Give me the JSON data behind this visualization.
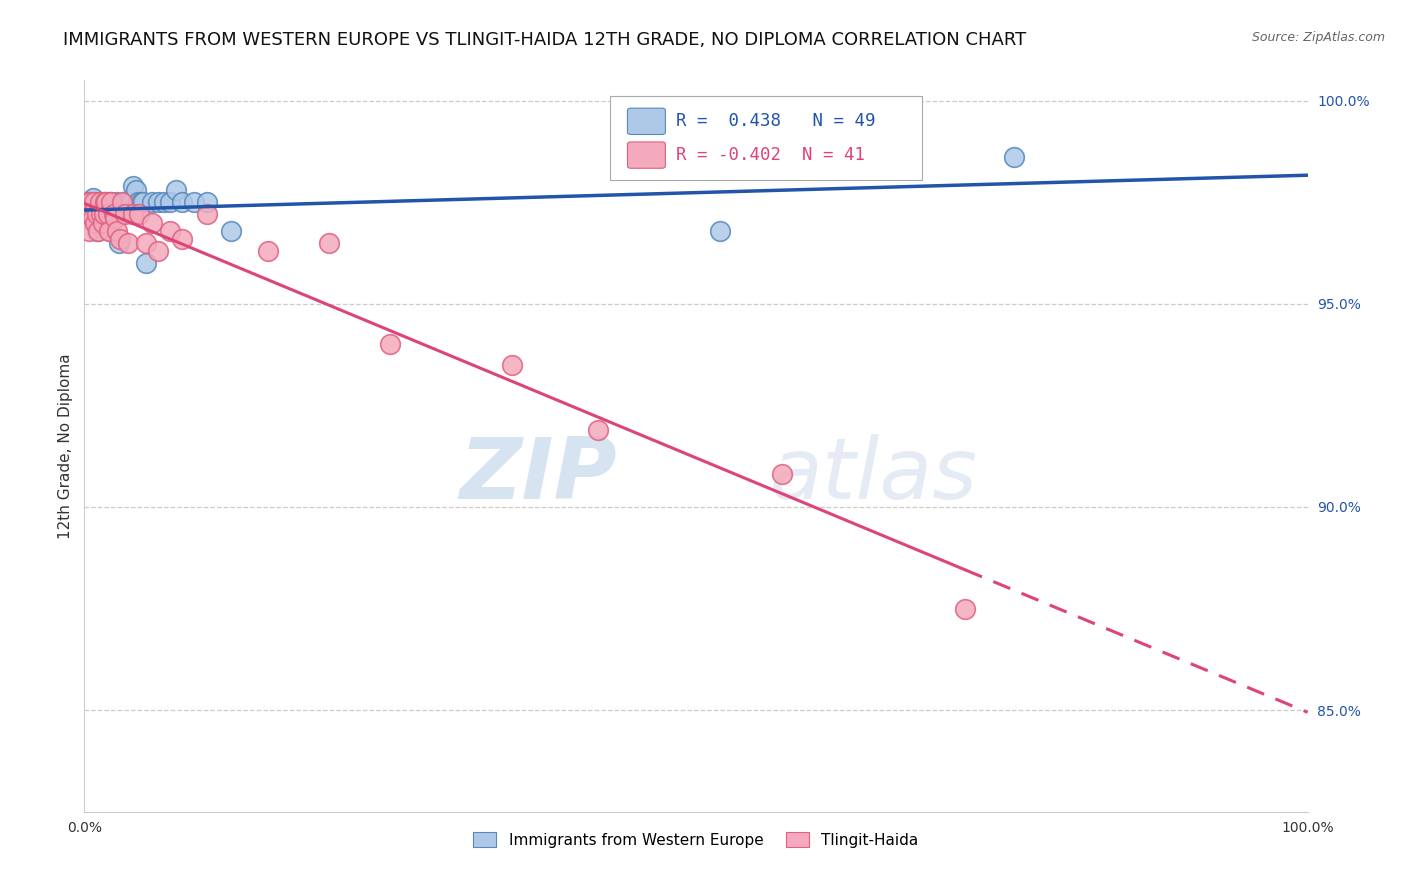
{
  "title": "IMMIGRANTS FROM WESTERN EUROPE VS TLINGIT-HAIDA 12TH GRADE, NO DIPLOMA CORRELATION CHART",
  "source": "Source: ZipAtlas.com",
  "ylabel": "12th Grade, No Diploma",
  "xlim": [
    0.0,
    1.0
  ],
  "ylim": [
    0.825,
    1.005
  ],
  "yticks_right": [
    0.85,
    0.9,
    0.95,
    1.0
  ],
  "ytick_right_labels": [
    "85.0%",
    "90.0%",
    "95.0%",
    "100.0%"
  ],
  "legend_blue_label": "Immigrants from Western Europe",
  "legend_pink_label": "Tlingit-Haida",
  "R_blue": 0.438,
  "N_blue": 49,
  "R_pink": -0.402,
  "N_pink": 41,
  "blue_color": "#aec9e8",
  "pink_color": "#f4aabc",
  "blue_edge_color": "#5588bb",
  "pink_edge_color": "#e06080",
  "blue_line_color": "#2255aa",
  "pink_line_color": "#dd4477",
  "watermark_zip": "ZIP",
  "watermark_atlas": "atlas",
  "blue_scatter_x": [
    0.001,
    0.002,
    0.003,
    0.004,
    0.005,
    0.006,
    0.007,
    0.008,
    0.009,
    0.01,
    0.011,
    0.012,
    0.013,
    0.014,
    0.015,
    0.016,
    0.017,
    0.018,
    0.02,
    0.021,
    0.022,
    0.023,
    0.024,
    0.025,
    0.026,
    0.027,
    0.028,
    0.03,
    0.032,
    0.034,
    0.036,
    0.038,
    0.04,
    0.042,
    0.044,
    0.046,
    0.048,
    0.05,
    0.055,
    0.06,
    0.065,
    0.07,
    0.075,
    0.08,
    0.09,
    0.1,
    0.12,
    0.52,
    0.76
  ],
  "blue_scatter_y": [
    0.972,
    0.971,
    0.974,
    0.975,
    0.975,
    0.975,
    0.976,
    0.973,
    0.975,
    0.968,
    0.972,
    0.975,
    0.97,
    0.975,
    0.971,
    0.975,
    0.972,
    0.974,
    0.975,
    0.968,
    0.975,
    0.972,
    0.974,
    0.971,
    0.975,
    0.972,
    0.965,
    0.972,
    0.975,
    0.975,
    0.975,
    0.975,
    0.979,
    0.978,
    0.975,
    0.975,
    0.975,
    0.96,
    0.975,
    0.975,
    0.975,
    0.975,
    0.978,
    0.975,
    0.975,
    0.975,
    0.968,
    0.968,
    0.986
  ],
  "pink_scatter_x": [
    0.002,
    0.003,
    0.004,
    0.005,
    0.006,
    0.007,
    0.008,
    0.009,
    0.01,
    0.011,
    0.013,
    0.014,
    0.015,
    0.016,
    0.017,
    0.018,
    0.019,
    0.02,
    0.022,
    0.024,
    0.025,
    0.027,
    0.029,
    0.031,
    0.033,
    0.036,
    0.04,
    0.045,
    0.05,
    0.055,
    0.06,
    0.07,
    0.08,
    0.1,
    0.15,
    0.2,
    0.25,
    0.35,
    0.42,
    0.57,
    0.72
  ],
  "pink_scatter_y": [
    0.972,
    0.975,
    0.968,
    0.975,
    0.972,
    0.971,
    0.975,
    0.97,
    0.972,
    0.968,
    0.975,
    0.972,
    0.97,
    0.972,
    0.975,
    0.975,
    0.972,
    0.968,
    0.975,
    0.972,
    0.971,
    0.968,
    0.966,
    0.975,
    0.972,
    0.965,
    0.972,
    0.972,
    0.965,
    0.97,
    0.963,
    0.968,
    0.966,
    0.972,
    0.963,
    0.965,
    0.94,
    0.935,
    0.919,
    0.908,
    0.875
  ],
  "grid_color": "#cccccc",
  "background_color": "#ffffff",
  "title_fontsize": 13,
  "axis_label_fontsize": 11,
  "tick_fontsize": 10,
  "legend_fontsize": 11
}
